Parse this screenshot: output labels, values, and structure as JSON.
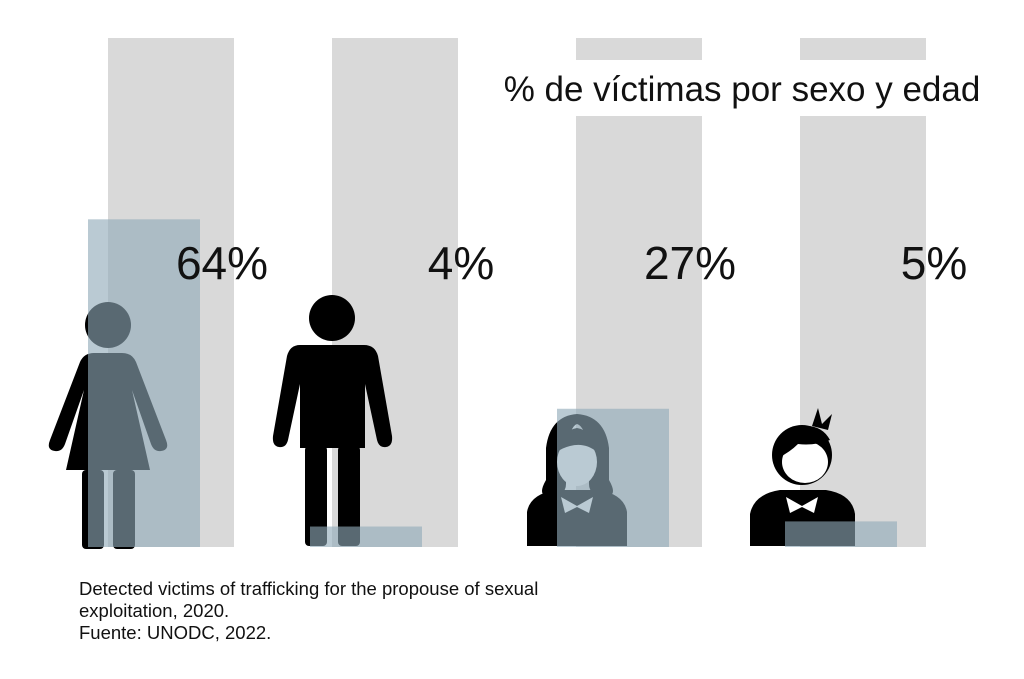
{
  "chart_data": {
    "type": "bar",
    "title": "% de víctimas por sexo y edad",
    "categories": [
      "Mujeres",
      "Hombres",
      "Niñas",
      "Niños"
    ],
    "values": [
      64,
      4,
      27,
      5
    ],
    "value_labels": [
      "64%",
      "4%",
      "27%",
      "5%"
    ],
    "ylim": [
      0,
      100
    ],
    "icons": [
      "woman-icon",
      "man-icon",
      "girl-icon",
      "boy-icon"
    ],
    "xlabel": "",
    "ylabel": "",
    "grid": false
  },
  "caption": {
    "line1": "Detected victims of trafficking for the propouse of sexual",
    "line2": "exploitation, 2020.",
    "line3": "Fuente: UNODC, 2022."
  },
  "colors": {
    "background": "#ffffff",
    "track": "#d9d9d9",
    "bar": "#8faab8",
    "icon": "#000000",
    "text": "#111111"
  }
}
